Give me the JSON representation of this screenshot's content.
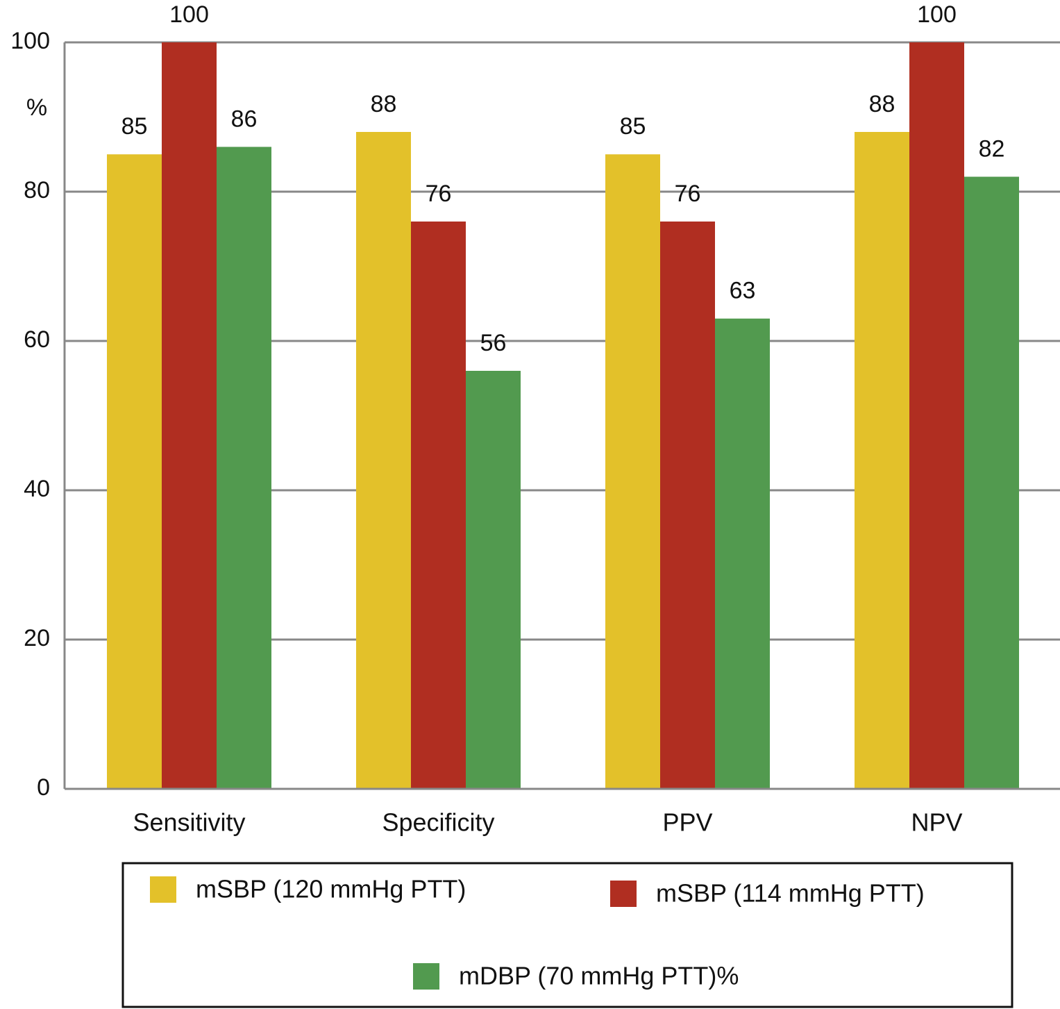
{
  "chart_data": {
    "type": "bar",
    "ylabel": "%",
    "categories": [
      "Sensitivity",
      "Specificity",
      "PPV",
      "NPV"
    ],
    "series": [
      {
        "name": "mSBP (120 mmHg PTT)",
        "color": "#e3c12a",
        "values": [
          85,
          88,
          85,
          88
        ]
      },
      {
        "name": "mSBP (114 mmHg PTT)",
        "color": "#b02e21",
        "values": [
          100,
          76,
          76,
          100
        ]
      },
      {
        "name": "mDBP (70 mmHg PTT)%",
        "color": "#529a4f",
        "values": [
          86,
          56,
          63,
          82
        ]
      }
    ],
    "ylim": [
      0,
      100
    ],
    "yticks": [
      0,
      20,
      40,
      60,
      80,
      100
    ],
    "grid": true
  }
}
